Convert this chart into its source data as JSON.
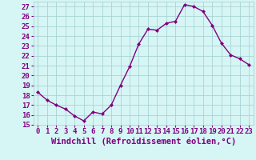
{
  "x": [
    0,
    1,
    2,
    3,
    4,
    5,
    6,
    7,
    8,
    9,
    10,
    11,
    12,
    13,
    14,
    15,
    16,
    17,
    18,
    19,
    20,
    21,
    22,
    23
  ],
  "y": [
    18.3,
    17.5,
    17.0,
    16.6,
    15.9,
    15.4,
    16.3,
    16.1,
    17.0,
    19.0,
    20.9,
    23.2,
    24.7,
    24.6,
    25.3,
    25.5,
    27.2,
    27.0,
    26.5,
    25.1,
    23.3,
    22.1,
    21.7,
    21.1
  ],
  "line_color": "#800080",
  "marker": "D",
  "marker_size": 2.0,
  "bg_color": "#d6f5f5",
  "grid_color": "#aad4d4",
  "xlabel": "Windchill (Refroidissement éolien,°C)",
  "ylabel": "",
  "ylim": [
    15,
    27.5
  ],
  "xlim": [
    -0.5,
    23.5
  ],
  "yticks": [
    15,
    16,
    17,
    18,
    19,
    20,
    21,
    22,
    23,
    24,
    25,
    26,
    27
  ],
  "xticks": [
    0,
    1,
    2,
    3,
    4,
    5,
    6,
    7,
    8,
    9,
    10,
    11,
    12,
    13,
    14,
    15,
    16,
    17,
    18,
    19,
    20,
    21,
    22,
    23
  ],
  "tick_label_color": "#800080",
  "xlabel_color": "#800080",
  "xlabel_fontsize": 7.5,
  "tick_fontsize": 6.5,
  "line_width": 1.0
}
